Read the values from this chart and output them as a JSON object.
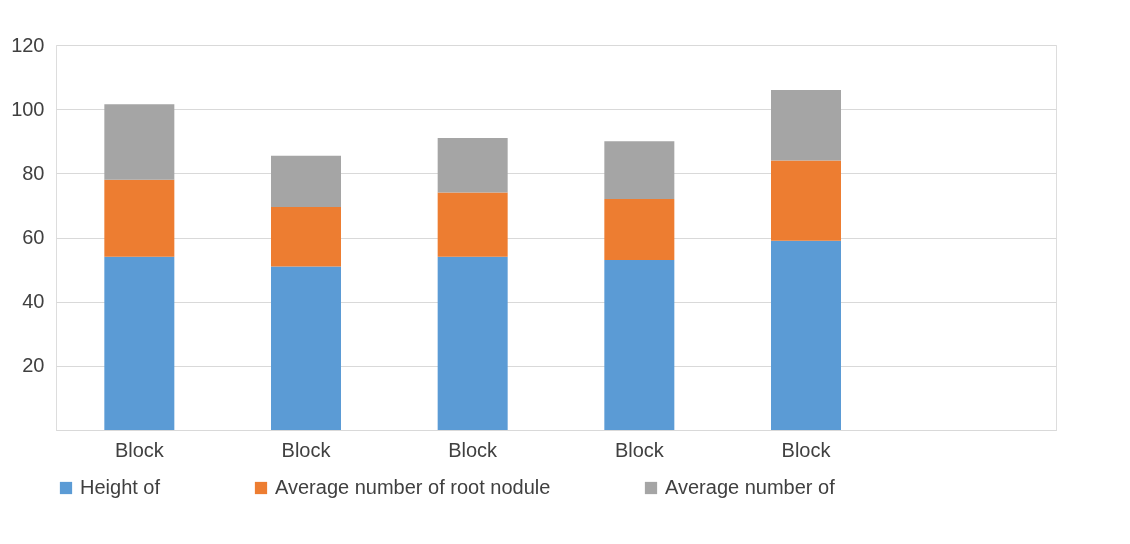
{
  "chart_data": {
    "type": "bar",
    "stacked": true,
    "categories": [
      "Block",
      "Block",
      "Block",
      "Block",
      "Block",
      null
    ],
    "series": [
      {
        "name": "Height of",
        "color": "#5b9bd5",
        "values": [
          54,
          51,
          54,
          53,
          59,
          null
        ]
      },
      {
        "name": "Average number of root nodule",
        "color": "#ed7d31",
        "values": [
          24,
          18.5,
          20,
          19,
          25,
          null
        ]
      },
      {
        "name": "Average number of",
        "color": "#a5a5a5",
        "values": [
          23.5,
          16,
          17,
          18,
          22,
          null
        ]
      }
    ],
    "ylim": [
      0,
      120
    ],
    "yticks": [
      {
        "value": 0,
        "label": null
      },
      20,
      40,
      60,
      80,
      100,
      120
    ],
    "grid": "y",
    "legend": "bottom"
  }
}
